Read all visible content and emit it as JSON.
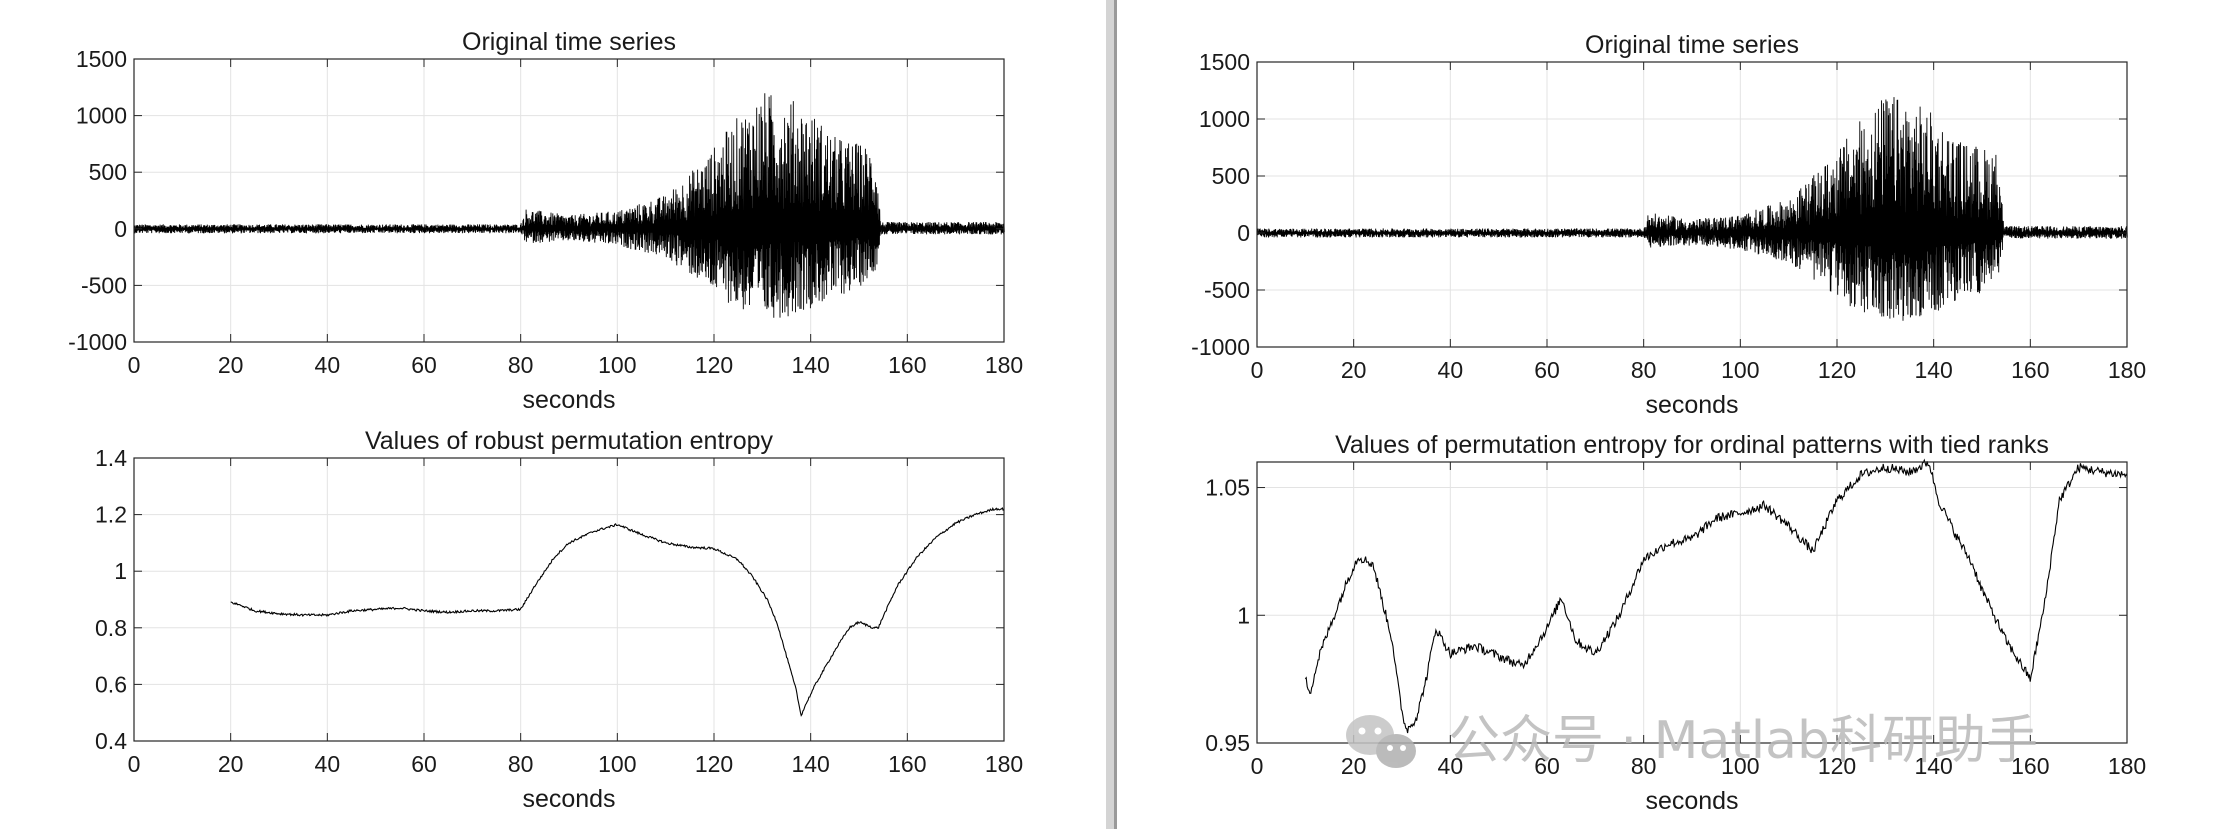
{
  "colors": {
    "line": "#000000",
    "grid": "#e3e3e3",
    "axis": "#262626",
    "divider_shadow": "#c8c8c8"
  },
  "watermark": {
    "text": "公众号 · Matlab科研助手",
    "icon": "wechat-icon"
  },
  "chart_data": [
    {
      "type": "line",
      "panel": "left-top",
      "title": "Original time series",
      "xlabel": "seconds",
      "ylabel": "",
      "xlim": [
        0,
        180
      ],
      "ylim": [
        -1000,
        1500
      ],
      "xticks": [
        0,
        20,
        40,
        60,
        80,
        100,
        120,
        140,
        160,
        180
      ],
      "yticks": [
        -1000,
        -500,
        0,
        500,
        1000,
        1500
      ],
      "grid": true,
      "series": [
        {
          "style": "dense-noise",
          "envelope_t": [
            0,
            80,
            81,
            90,
            100,
            110,
            118,
            125,
            130,
            135,
            140,
            145,
            150,
            153.5,
            154.5,
            180
          ],
          "envelope_pos": [
            40,
            40,
            180,
            120,
            160,
            300,
            620,
            1000,
            1220,
            1180,
            1050,
            820,
            760,
            720,
            60,
            60
          ],
          "envelope_neg": [
            -40,
            -40,
            -130,
            -110,
            -150,
            -260,
            -500,
            -720,
            -800,
            -780,
            -700,
            -620,
            -520,
            -360,
            -50,
            -50
          ]
        }
      ]
    },
    {
      "type": "line",
      "panel": "left-bottom",
      "title": "Values of robust permutation entropy",
      "xlabel": "seconds",
      "ylabel": "",
      "xlim": [
        0,
        180
      ],
      "ylim": [
        0.4,
        1.4
      ],
      "xticks": [
        0,
        20,
        40,
        60,
        80,
        100,
        120,
        140,
        160,
        180
      ],
      "yticks": [
        0.4,
        0.6,
        0.8,
        1,
        1.2,
        1.4
      ],
      "grid": true,
      "series": [
        {
          "x": [
            20,
            22,
            25,
            30,
            35,
            40,
            45,
            50,
            55,
            60,
            65,
            70,
            75,
            80,
            83,
            87,
            90,
            95,
            100,
            105,
            110,
            115,
            120,
            125,
            128,
            131,
            133,
            135,
            137,
            138,
            139,
            141,
            143,
            145,
            148,
            150,
            153,
            154,
            155,
            158,
            162,
            166,
            170,
            174,
            178,
            180
          ],
          "y": [
            0.89,
            0.88,
            0.86,
            0.85,
            0.845,
            0.845,
            0.86,
            0.865,
            0.87,
            0.86,
            0.855,
            0.86,
            0.86,
            0.865,
            0.95,
            1.05,
            1.1,
            1.14,
            1.165,
            1.13,
            1.1,
            1.085,
            1.08,
            1.04,
            0.98,
            0.9,
            0.82,
            0.7,
            0.58,
            0.49,
            0.53,
            0.6,
            0.66,
            0.72,
            0.8,
            0.82,
            0.8,
            0.8,
            0.84,
            0.95,
            1.05,
            1.12,
            1.17,
            1.2,
            1.22,
            1.22
          ],
          "jitter": 0.004
        }
      ]
    },
    {
      "type": "line",
      "panel": "right-top",
      "title": "Original time series",
      "xlabel": "seconds",
      "ylabel": "",
      "xlim": [
        0,
        180
      ],
      "ylim": [
        -1000,
        1500
      ],
      "xticks": [
        0,
        20,
        40,
        60,
        80,
        100,
        120,
        140,
        160,
        180
      ],
      "yticks": [
        -1000,
        -500,
        0,
        500,
        1000,
        1500
      ],
      "grid": true,
      "series": [
        {
          "style": "dense-noise",
          "envelope_t": [
            0,
            80,
            81,
            90,
            100,
            110,
            118,
            125,
            130,
            135,
            140,
            145,
            150,
            153.5,
            154.5,
            180
          ],
          "envelope_pos": [
            40,
            40,
            180,
            120,
            160,
            300,
            620,
            1000,
            1220,
            1180,
            1050,
            820,
            760,
            720,
            60,
            60
          ],
          "envelope_neg": [
            -40,
            -40,
            -130,
            -110,
            -150,
            -260,
            -500,
            -720,
            -800,
            -780,
            -700,
            -620,
            -520,
            -360,
            -50,
            -50
          ]
        }
      ]
    },
    {
      "type": "line",
      "panel": "right-bottom",
      "title": "Values of permutation entropy for ordinal patterns with tied ranks",
      "xlabel": "seconds",
      "ylabel": "",
      "xlim": [
        0,
        180
      ],
      "ylim": [
        0.95,
        1.06
      ],
      "xticks": [
        0,
        20,
        40,
        60,
        80,
        100,
        120,
        140,
        160,
        180
      ],
      "yticks": [
        0.95,
        1,
        1.05
      ],
      "grid": true,
      "series": [
        {
          "x": [
            10,
            11,
            13,
            16,
            19,
            21,
            24,
            26,
            28,
            29,
            30,
            31,
            33,
            35,
            37,
            40,
            45,
            50,
            55,
            60,
            63,
            66,
            70,
            75,
            80,
            85,
            90,
            95,
            100,
            105,
            110,
            115,
            120,
            125,
            130,
            135,
            139,
            141,
            145,
            148,
            150,
            155,
            160,
            163,
            166,
            170,
            175,
            180
          ],
          "y": [
            0.975,
            0.97,
            0.985,
            1.0,
            1.015,
            1.023,
            1.02,
            1.005,
            0.99,
            0.975,
            0.962,
            0.955,
            0.96,
            0.975,
            0.995,
            0.985,
            0.988,
            0.984,
            0.98,
            0.995,
            1.007,
            0.99,
            0.985,
            1.0,
            1.022,
            1.028,
            1.03,
            1.038,
            1.04,
            1.043,
            1.035,
            1.025,
            1.045,
            1.055,
            1.058,
            1.056,
            1.06,
            1.045,
            1.03,
            1.02,
            1.01,
            0.99,
            0.975,
            1.005,
            1.045,
            1.058,
            1.056,
            1.055
          ],
          "jitter": 0.0018
        }
      ]
    }
  ]
}
